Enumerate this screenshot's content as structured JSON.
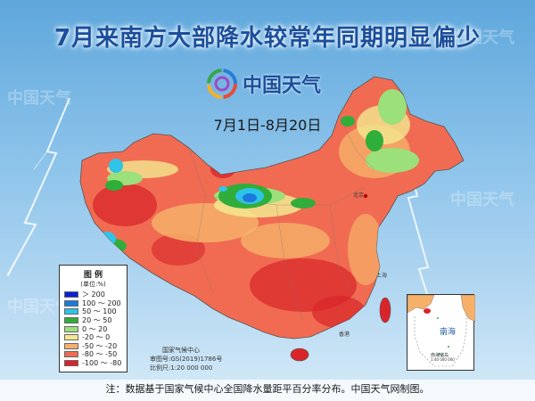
{
  "title": "7月来南方大部降水较常年同期明显偏少",
  "logo_text": "中国天气",
  "date_range": "7月1日-8月20日",
  "legend": {
    "title": "图 例",
    "subtitle": "(单位:%)",
    "items": [
      {
        "label": "＞ 200",
        "color": "#0a1fd6"
      },
      {
        "label": "100 ～ 200",
        "color": "#1a7ae0"
      },
      {
        "label": "50 ～ 100",
        "color": "#2ec4e8"
      },
      {
        "label": "20 ～ 50",
        "color": "#2fae3a"
      },
      {
        "label": "0 ～ 20",
        "color": "#9be07a"
      },
      {
        "label": "-20 ～ 0",
        "color": "#f3e890"
      },
      {
        "label": "-50 ～ -20",
        "color": "#f6b06a"
      },
      {
        "label": "-80 ～ -50",
        "color": "#f06b52"
      },
      {
        "label": "-100 ～ -80",
        "color": "#d9252a"
      }
    ]
  },
  "producer": {
    "org": "国家气候中心",
    "review": "审图号:GS(2019)1786号",
    "scale": "比例尺:1:20 000 000"
  },
  "inset": {
    "sea_name": "南海",
    "islands_label": "南海诸岛",
    "scale": "1:40 000 000"
  },
  "cities": [
    "北京",
    "上海",
    "香港"
  ],
  "note": "注：数据基于国家气候中心全国降水量距平百分率分布。中国天气网制图。",
  "watermark": "中国天气"
}
